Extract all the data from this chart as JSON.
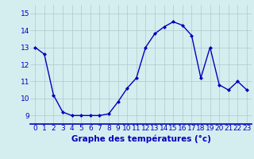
{
  "x": [
    0,
    1,
    2,
    3,
    4,
    5,
    6,
    7,
    8,
    9,
    10,
    11,
    12,
    13,
    14,
    15,
    16,
    17,
    18,
    19,
    20,
    21,
    22,
    23
  ],
  "y": [
    13.0,
    12.6,
    10.2,
    9.2,
    9.0,
    9.0,
    9.0,
    9.0,
    9.1,
    9.8,
    10.6,
    11.2,
    13.0,
    13.8,
    14.2,
    14.5,
    14.3,
    13.7,
    11.2,
    13.0,
    10.8,
    10.5,
    11.0,
    10.5
  ],
  "line_color": "#0000bb",
  "marker": "D",
  "marker_size": 2.0,
  "bg_color": "#d4eef0",
  "grid_color": "#b0c8cc",
  "xlabel": "Graphe des températures (°c)",
  "xlabel_color": "#0000bb",
  "xlabel_fontsize": 7.5,
  "tick_color": "#0000bb",
  "tick_fontsize": 6.5,
  "ylim": [
    8.5,
    15.5
  ],
  "xlim": [
    -0.5,
    23.5
  ],
  "yticks": [
    9,
    10,
    11,
    12,
    13,
    14,
    15
  ],
  "xticks": [
    0,
    1,
    2,
    3,
    4,
    5,
    6,
    7,
    8,
    9,
    10,
    11,
    12,
    13,
    14,
    15,
    16,
    17,
    18,
    19,
    20,
    21,
    22,
    23
  ],
  "line_width": 1.0
}
